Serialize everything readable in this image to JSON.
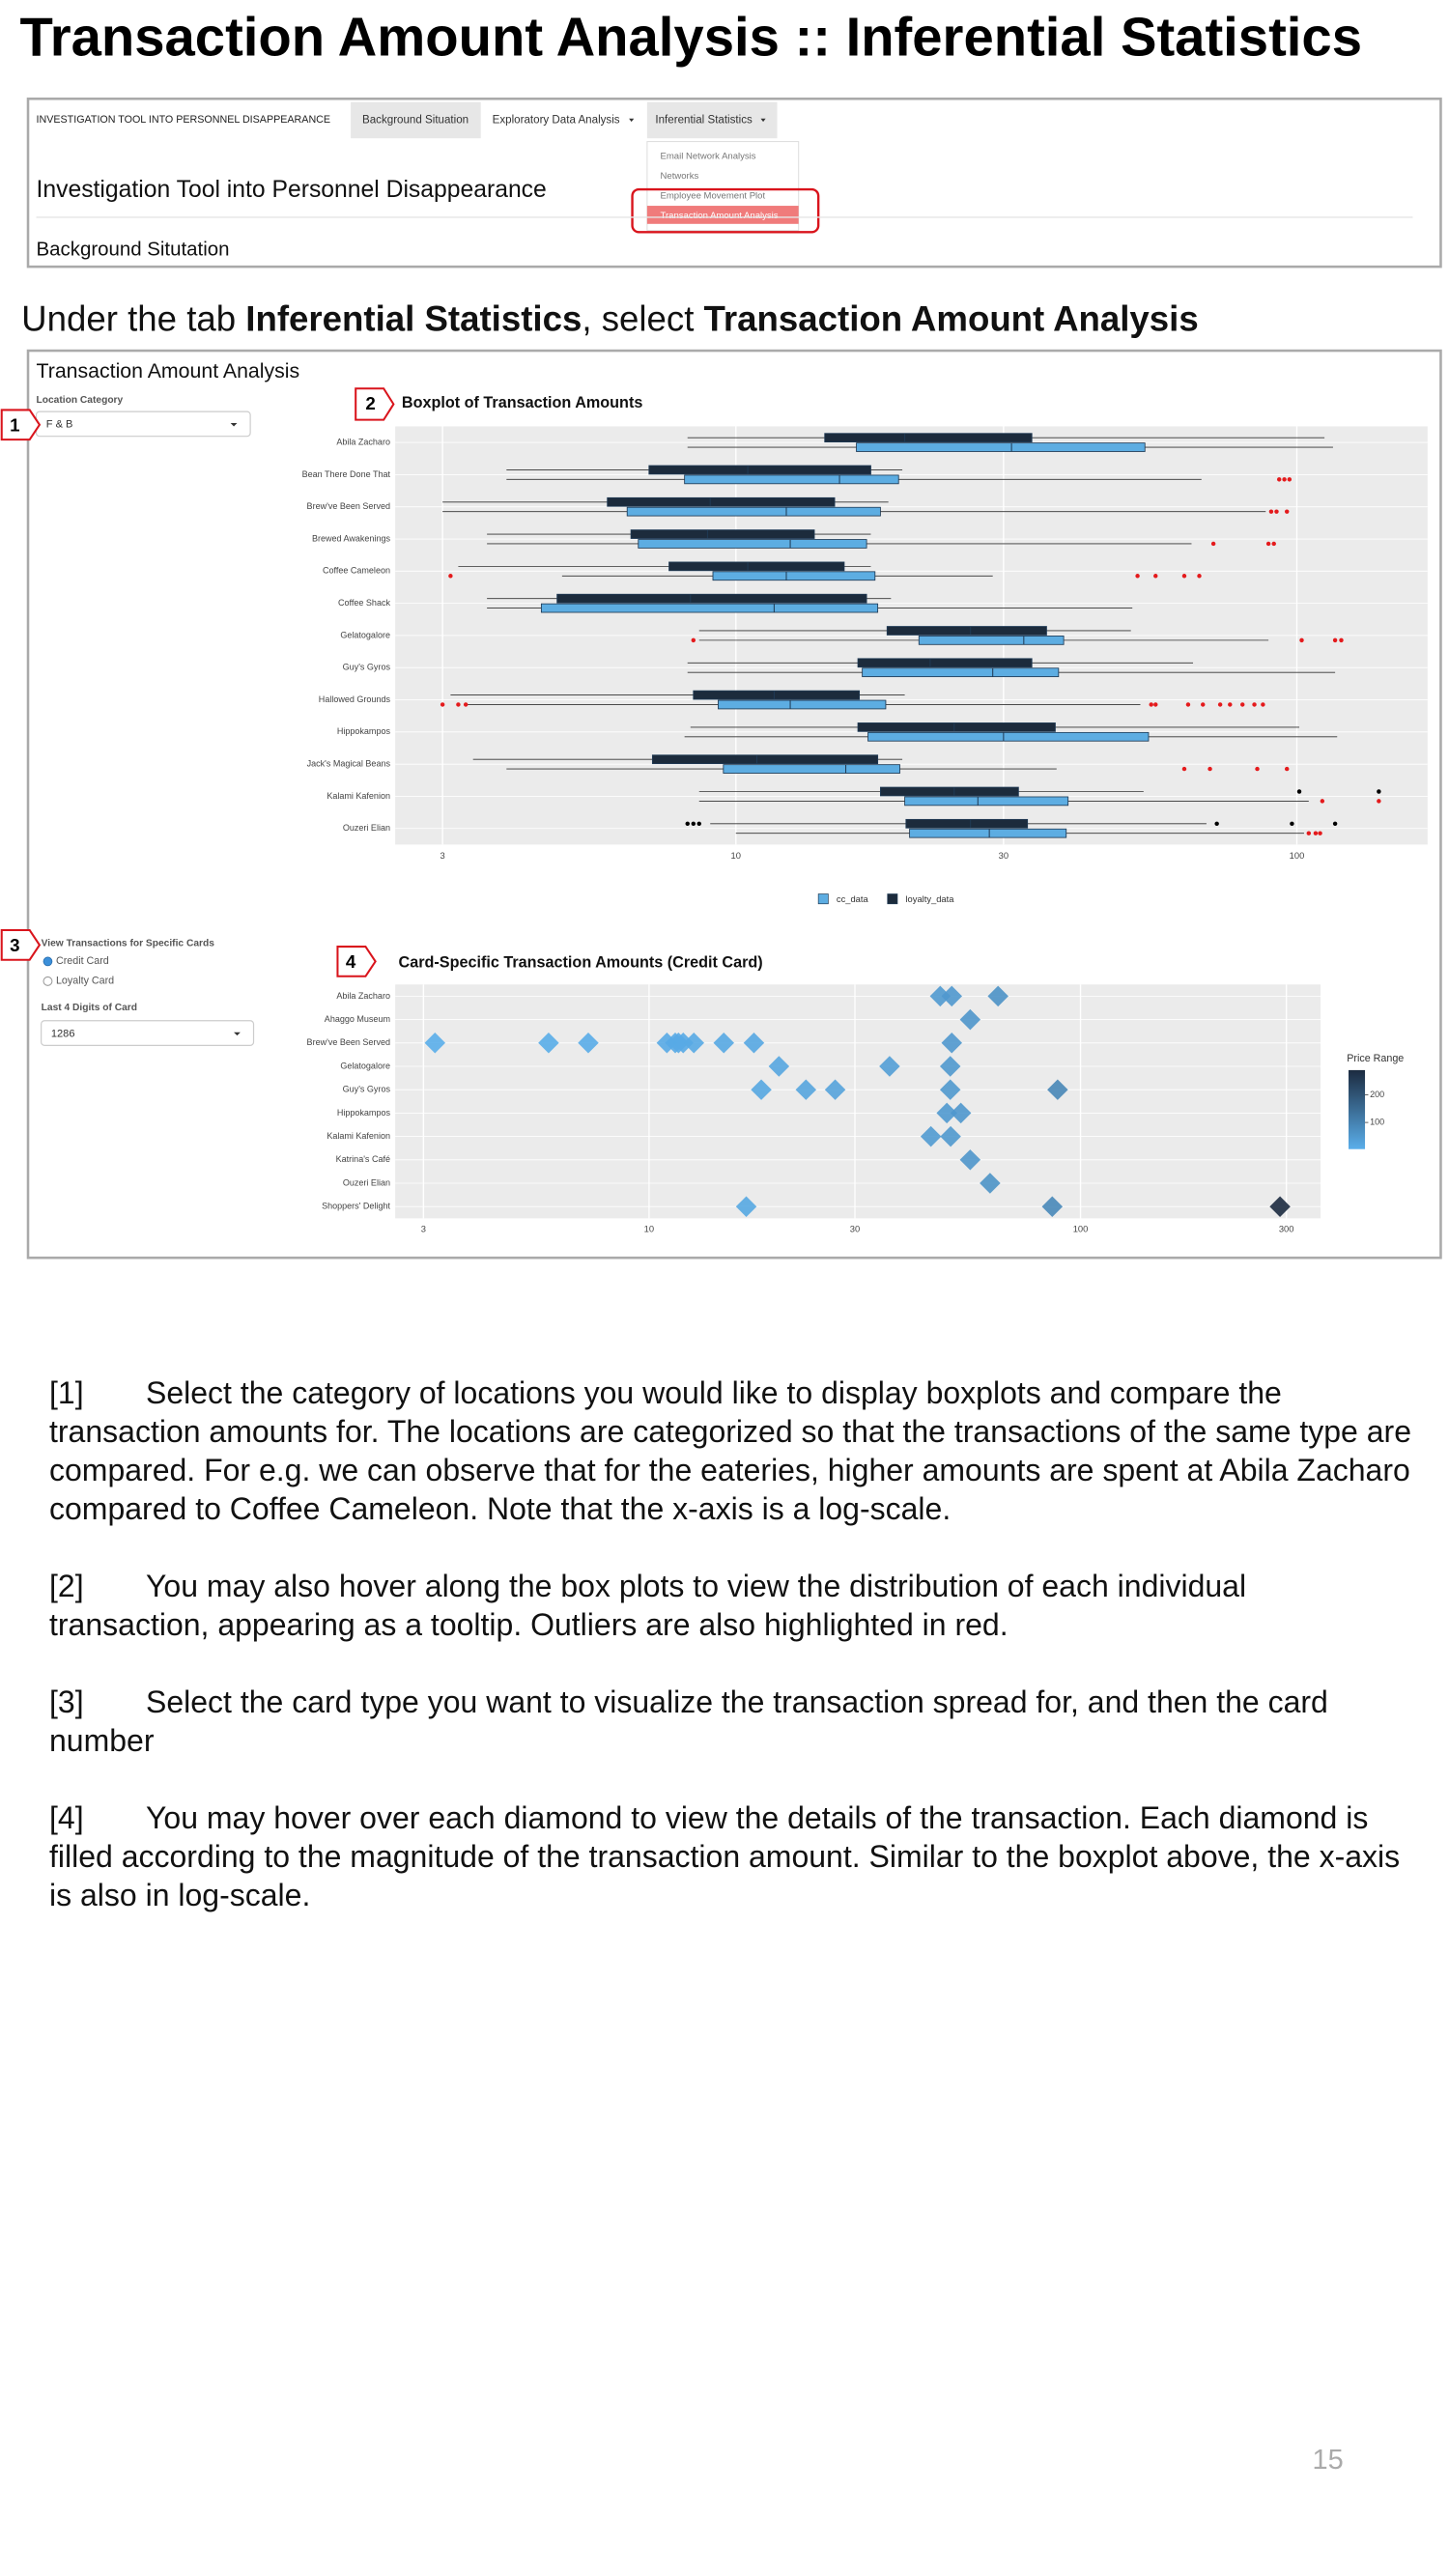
{
  "title": "Transaction Amount Analysis :: Inferential Statistics",
  "app_header": {
    "nav": [
      "INVESTIGATION TOOL INTO PERSONNEL DISAPPEARANCE",
      "Background Situation",
      "Exploratory Data Analysis",
      "Inferential Statistics"
    ],
    "dropdown": [
      "Email Network Analysis",
      "Networks",
      "Employee Movement Plot",
      "Transaction Amount Analysis"
    ],
    "heading": "Investigation Tool into Personnel Disappearance",
    "section": "Background Situtation"
  },
  "instruction": {
    "prefix": "Under the tab ",
    "tab": "Inferential Statistics",
    "middle": ", select ",
    "item": "Transaction Amount Analysis"
  },
  "panel": {
    "title": "Transaction Amount Analysis",
    "location_label": "Location Category",
    "location_value": "F & B",
    "card_type_label": "View Transactions for Specific Cards",
    "card_types": [
      "Credit Card",
      "Loyalty Card"
    ],
    "card_digits_label": "Last 4 Digits of Card",
    "card_digits_value": "1286"
  },
  "callouts": [
    "1",
    "2",
    "3",
    "4"
  ],
  "chart_data": [
    {
      "type": "boxplot",
      "title": "Boxplot of Transaction Amounts",
      "log_x": true,
      "grid": true,
      "categories": [
        "Abila Zacharo",
        "Bean There Done That",
        "Brew've Been Served",
        "Brewed Awakenings",
        "Coffee Cameleon",
        "Coffee Shack",
        "Gelatogalore",
        "Guy's Gyros",
        "Hallowed Grounds",
        "Hippokampos",
        "Jack's Magical Beans",
        "Kalami Kafenion",
        "Ouzeri Elian"
      ],
      "series": [
        {
          "name": "cc_data",
          "color": "#5dade2",
          "outlier_color": "#e41a1c",
          "values": [
            [
              8.2,
              16.4,
              31,
              53.6,
              116
            ],
            [
              3.9,
              8.1,
              15.3,
              19.5,
              67.6
            ],
            [
              3,
              6.4,
              12.3,
              18.1,
              88
            ],
            [
              3.6,
              6.7,
              12.5,
              17.1,
              64.9
            ],
            [
              4.9,
              9.1,
              12.3,
              17.7,
              28.7
            ],
            [
              3.6,
              4.5,
              11.7,
              17.9,
              50.9
            ],
            [
              8.6,
              21.2,
              32.6,
              38.4,
              89
            ],
            [
              8.2,
              16.8,
              28.7,
              37.6,
              117
            ],
            [
              3.3,
              9.3,
              12.5,
              18.5,
              52.6
            ],
            [
              8.1,
              17.2,
              30,
              54.4,
              118
            ],
            [
              3.9,
              9.5,
              15.7,
              19.6,
              37.3
            ],
            [
              8.6,
              20,
              27,
              39.1,
              105
            ],
            [
              10,
              20.4,
              28.3,
              38.8,
              103
            ]
          ],
          "outliers": [
            [],
            [
              93,
              95,
              97
            ],
            [
              90,
              92,
              96
            ],
            [
              71,
              89,
              91
            ],
            [
              3.1,
              52,
              56,
              63,
              67
            ],
            [],
            [
              8.4,
              102,
              117,
              120
            ],
            [],
            [
              3,
              3.2,
              3.3,
              55,
              56,
              64,
              68,
              73,
              76,
              80,
              84,
              87
            ],
            [],
            [
              63,
              70,
              85,
              96
            ],
            [
              111,
              140
            ],
            [
              105,
              108,
              110
            ]
          ]
        },
        {
          "name": "loyalty_data",
          "color": "#1c2b3c",
          "outlier_color": "#000000",
          "values": [
            [
              8.2,
              14.4,
              20,
              33.7,
              112
            ],
            [
              3.9,
              7,
              10.5,
              17.4,
              19.8
            ],
            [
              3,
              5.9,
              9,
              15,
              18.7
            ],
            [
              3.6,
              6.5,
              8.9,
              13.8,
              17.4
            ],
            [
              3.2,
              7.6,
              10.5,
              15.6,
              17.4
            ],
            [
              3.6,
              4.8,
              8.3,
              17.1,
              18.9
            ],
            [
              8.6,
              18.6,
              26.2,
              35.8,
              50.6
            ],
            [
              8.2,
              16.5,
              22.2,
              33.7,
              65.3
            ],
            [
              3.1,
              8.4,
              11.7,
              16.6,
              20
            ],
            [
              8.3,
              16.5,
              24.5,
              37.1,
              101
            ],
            [
              3.4,
              7.1,
              10.9,
              17.9,
              19.8
            ],
            [
              8.6,
              18.1,
              24.5,
              31.9,
              53.3
            ],
            [
              9,
              20.1,
              26.2,
              33.1,
              69
            ]
          ],
          "outliers": [
            [],
            [],
            [],
            [],
            [],
            [],
            [],
            [],
            [],
            [],
            [],
            [
              101,
              140
            ],
            [
              8.2,
              8.4,
              8.6,
              72,
              98,
              117
            ]
          ]
        }
      ],
      "xlim": [
        2.47,
        171
      ],
      "xticks": [
        3,
        10,
        30,
        100
      ]
    },
    {
      "type": "strip",
      "title": "Card-Specific Transaction Amounts (Credit Card)",
      "log_x": true,
      "grid": true,
      "categories": [
        "Abila Zacharo",
        "Ahaggo Museum",
        "Brew've Been Served",
        "Gelatogalore",
        "Guy's Gyros",
        "Hippokampos",
        "Kalami Kafenion",
        "Katrina's Café",
        "Ouzeri Elian",
        "Shoppers' Delight"
      ],
      "x": [
        47.3,
        50.3,
        64.4,
        55.5,
        3.19,
        5.85,
        7.23,
        11,
        11.5,
        11.7,
        12,
        12.7,
        14.9,
        17.5,
        50.3,
        20,
        36.1,
        49.9,
        18.2,
        23.1,
        27,
        49.9,
        88.5,
        49,
        52.8,
        45,
        50,
        55.5,
        61.7,
        16.8,
        86,
        290
      ],
      "y": [
        "Abila Zacharo",
        "Abila Zacharo",
        "Abila Zacharo",
        "Ahaggo Museum",
        "Brew've Been Served",
        "Brew've Been Served",
        "Brew've Been Served",
        "Brew've Been Served",
        "Brew've Been Served",
        "Brew've Been Served",
        "Brew've Been Served",
        "Brew've Been Served",
        "Brew've Been Served",
        "Brew've Been Served",
        "Brew've Been Served",
        "Gelatogalore",
        "Gelatogalore",
        "Gelatogalore",
        "Guy's Gyros",
        "Guy's Gyros",
        "Guy's Gyros",
        "Guy's Gyros",
        "Guy's Gyros",
        "Hippokampos",
        "Hippokampos",
        "Kalami Kafenion",
        "Kalami Kafenion",
        "Katrina's Café",
        "Ouzeri Elian",
        "Shoppers' Delight",
        "Shoppers' Delight",
        "Shoppers' Delight"
      ],
      "xlim": [
        2.58,
        360
      ],
      "xticks": [
        3,
        10,
        30,
        100,
        300
      ],
      "colorbar": {
        "title": "Price Range",
        "lim": [
          3.19,
          290
        ],
        "ticks": [
          100,
          200
        ],
        "colors": [
          "#5aaeea",
          "#1c2b40"
        ]
      }
    }
  ],
  "notes": [
    {
      "marker": "[1]",
      "text": "Select the category of locations you would like to display boxplots and compare the transaction amounts for. The locations are categorized so that the transactions of the same type are compared. For e.g. we can observe that for the eateries, higher amounts are spent at Abila Zacharo compared to Coffee Cameleon. Note that the x-axis is a log-scale."
    },
    {
      "marker": "[2]",
      "text": "You may also hover along the box plots to view the distribution of each individual transaction, appearing as a tooltip. Outliers are also highlighted in red."
    },
    {
      "marker": "[3]",
      "text": "Select the card type you want to visualize the transaction spread for, and then the card number"
    },
    {
      "marker": "[4]",
      "text": "You may hover over each diamond to view the details of the transaction. Each diamond is filled according to the magnitude of the transaction amount. Similar to the boxplot above, the x-axis is also in log-scale."
    }
  ],
  "page_number": "15"
}
